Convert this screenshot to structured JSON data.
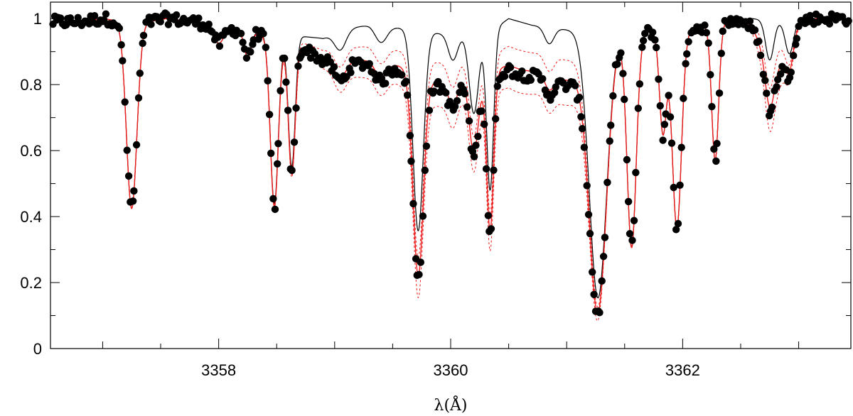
{
  "chart_data": {
    "type": "line",
    "title": "",
    "xlabel": "λ(Å)",
    "ylabel": "",
    "xlim": [
      3356.55,
      3363.45
    ],
    "ylim": [
      0,
      1.05
    ],
    "x_ticks": [
      {
        "value": 3358,
        "label": "3358"
      },
      {
        "value": 3360,
        "label": "3360"
      },
      {
        "value": 3362,
        "label": "3362"
      }
    ],
    "y_ticks": [
      {
        "value": 0,
        "label": "0"
      },
      {
        "value": 0.2,
        "label": "0.2"
      },
      {
        "value": 0.4,
        "label": "0.4"
      },
      {
        "value": 0.6,
        "label": "0.6"
      },
      {
        "value": 0.8,
        "label": "0.8"
      },
      {
        "value": 1,
        "label": "1"
      }
    ],
    "x_minor_step": 0.5,
    "y_minor_step": 0.1,
    "colors": {
      "observed": "#000000",
      "black_model": "#000000",
      "red_model": "#ee1c1c"
    },
    "continuum": [
      [
        3356.55,
        0.99
      ],
      [
        3356.8,
        0.99
      ],
      [
        3357.0,
        1.0
      ],
      [
        3357.3,
        0.985
      ],
      [
        3357.55,
        1.0
      ],
      [
        3357.8,
        0.99
      ],
      [
        3358.05,
        0.97
      ],
      [
        3358.3,
        0.96
      ],
      [
        3358.6,
        0.95
      ],
      [
        3358.9,
        0.94
      ],
      [
        3359.1,
        0.97
      ],
      [
        3359.3,
        0.98
      ],
      [
        3359.6,
        0.97
      ],
      [
        3359.8,
        0.96
      ],
      [
        3360.0,
        0.95
      ],
      [
        3360.3,
        0.95
      ],
      [
        3360.5,
        1.0
      ],
      [
        3360.7,
        0.98
      ],
      [
        3360.9,
        0.97
      ],
      [
        3361.2,
        0.96
      ],
      [
        3361.5,
        0.96
      ],
      [
        3361.8,
        0.96
      ],
      [
        3362.1,
        0.97
      ],
      [
        3362.35,
        0.99
      ],
      [
        3362.6,
        1.0
      ],
      [
        3362.85,
        0.99
      ],
      [
        3363.1,
        1.0
      ],
      [
        3363.45,
        1.0
      ]
    ],
    "lines": [
      {
        "center": 3357.25,
        "depth": 0.57,
        "sigma": 0.045
      },
      {
        "center": 3358.0,
        "depth": 0.05,
        "sigma": 0.04
      },
      {
        "center": 3358.25,
        "depth": 0.08,
        "sigma": 0.03
      },
      {
        "center": 3358.48,
        "depth": 0.54,
        "sigma": 0.035
      },
      {
        "center": 3358.63,
        "depth": 0.42,
        "sigma": 0.03
      },
      {
        "center": 3359.05,
        "depth": 0.06,
        "sigma": 0.05
      },
      {
        "center": 3359.4,
        "depth": 0.05,
        "sigma": 0.05
      },
      {
        "center": 3359.72,
        "depth": 0.63,
        "sigma": 0.045
      },
      {
        "center": 3360.02,
        "depth": 0.08,
        "sigma": 0.04
      },
      {
        "center": 3360.2,
        "depth": 0.25,
        "sigma": 0.04
      },
      {
        "center": 3360.34,
        "depth": 0.5,
        "sigma": 0.03
      },
      {
        "center": 3360.85,
        "depth": 0.05,
        "sigma": 0.04
      },
      {
        "center": 3361.27,
        "depth": 0.84,
        "sigma": 0.075
      },
      {
        "center": 3361.56,
        "depth": 0.68,
        "sigma": 0.04
      },
      {
        "center": 3361.83,
        "depth": 0.32,
        "sigma": 0.03
      },
      {
        "center": 3361.95,
        "depth": 0.62,
        "sigma": 0.04
      },
      {
        "center": 3362.28,
        "depth": 0.42,
        "sigma": 0.03
      },
      {
        "center": 3362.75,
        "depth": 0.12,
        "sigma": 0.035
      },
      {
        "center": 3362.92,
        "depth": 0.1,
        "sigma": 0.035
      }
    ],
    "extra_absorption": [
      {
        "center": 3359.25,
        "depth": 0.1,
        "sigma": 0.35
      },
      {
        "center": 3359.9,
        "depth": 0.12,
        "sigma": 0.25
      },
      {
        "center": 3360.6,
        "depth": 0.14,
        "sigma": 0.3
      },
      {
        "center": 3361.05,
        "depth": 0.1,
        "sigma": 0.15
      },
      {
        "center": 3362.78,
        "depth": 0.15,
        "sigma": 0.1
      }
    ],
    "series": [
      {
        "values_from": "model_black",
        "style": "solid",
        "color": "#000000"
      },
      {
        "values_from": "model_red",
        "style": "solid",
        "color": "#ee1c1c"
      },
      {
        "values_from": "model_red_upper",
        "style": "dotted",
        "color": "#ee1c1c"
      },
      {
        "values_from": "model_red_lower",
        "style": "dotted",
        "color": "#ee1c1c"
      },
      {
        "values_from": "observed",
        "style": "markers",
        "color": "#000000"
      }
    ],
    "observed_count": 420
  }
}
